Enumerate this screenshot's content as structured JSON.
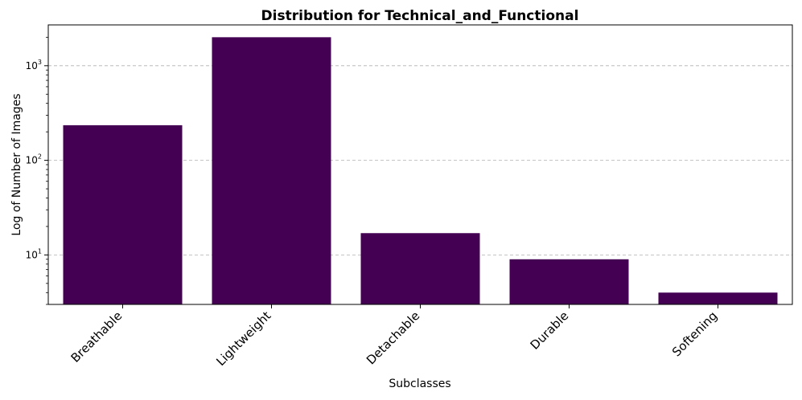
{
  "chart_data": {
    "type": "bar",
    "title": "Distribution for Technical_and_Functional",
    "xlabel": "Subclasses",
    "ylabel": "Log of Number of Images",
    "yscale": "log",
    "ylim": [
      3,
      2700
    ],
    "grid": "y-major-dashed",
    "categories": [
      "Breathable",
      "Lightweight",
      "Detachable",
      "Durable",
      "Softening"
    ],
    "values": [
      235,
      2000,
      17,
      9,
      4
    ],
    "y_ticks": [
      {
        "base": "10",
        "exp": "1",
        "value": 10
      },
      {
        "base": "10",
        "exp": "2",
        "value": 100
      },
      {
        "base": "10",
        "exp": "3",
        "value": 1000
      }
    ],
    "bar_color": "#440154"
  }
}
